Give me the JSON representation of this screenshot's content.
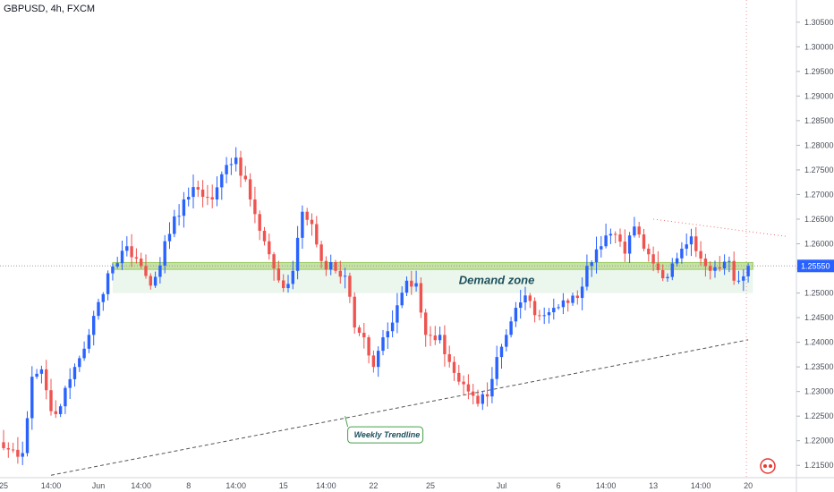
{
  "header": {
    "symbol_line": "GBPUSD, 4h, FXCM"
  },
  "chart_data": {
    "type": "candlestick",
    "symbol": "GBPUSD",
    "timeframe": "4h",
    "source": "FXCM",
    "ylim": [
      1.2125,
      1.3095
    ],
    "y_ticks": [
      "1.30500",
      "1.30000",
      "1.29500",
      "1.29000",
      "1.28500",
      "1.28000",
      "1.27500",
      "1.27000",
      "1.26500",
      "1.26000",
      "1.25500",
      "1.25000",
      "1.24500",
      "1.24000",
      "1.23500",
      "1.23000",
      "1.22500",
      "1.22000",
      "1.21500"
    ],
    "x_ticks": [
      {
        "label": "25",
        "i": 0
      },
      {
        "label": "14:00",
        "i": 10
      },
      {
        "label": "Jun",
        "i": 20
      },
      {
        "label": "14:00",
        "i": 29
      },
      {
        "label": "8",
        "i": 39
      },
      {
        "label": "14:00",
        "i": 49
      },
      {
        "label": "15",
        "i": 59
      },
      {
        "label": "14:00",
        "i": 68
      },
      {
        "label": "22",
        "i": 78
      },
      {
        "label": "25",
        "i": 90
      },
      {
        "label": "Jul",
        "i": 105
      },
      {
        "label": "6",
        "i": 117
      },
      {
        "label": "14:00",
        "i": 127
      },
      {
        "label": "13",
        "i": 137
      },
      {
        "label": "14:00",
        "i": 147
      },
      {
        "label": "20",
        "i": 157
      }
    ],
    "anchors": [
      [
        0,
        1.2185
      ],
      [
        4,
        1.2175
      ],
      [
        6,
        1.233
      ],
      [
        8,
        1.2345
      ],
      [
        10,
        1.226
      ],
      [
        12,
        1.227
      ],
      [
        14,
        1.2325
      ],
      [
        18,
        1.2415
      ],
      [
        22,
        1.254
      ],
      [
        26,
        1.2595
      ],
      [
        29,
        1.2555
      ],
      [
        31,
        1.2515
      ],
      [
        35,
        1.262
      ],
      [
        38,
        1.269
      ],
      [
        41,
        1.271
      ],
      [
        44,
        1.269
      ],
      [
        47,
        1.276
      ],
      [
        49,
        1.2775
      ],
      [
        52,
        1.269
      ],
      [
        55,
        1.2605
      ],
      [
        57,
        1.255
      ],
      [
        59,
        1.251
      ],
      [
        61,
        1.2545
      ],
      [
        63,
        1.2665
      ],
      [
        65,
        1.264
      ],
      [
        67,
        1.2565
      ],
      [
        70,
        1.2545
      ],
      [
        72,
        1.2535
      ],
      [
        74,
        1.243
      ],
      [
        76,
        1.241
      ],
      [
        78,
        1.235
      ],
      [
        80,
        1.241
      ],
      [
        82,
        1.244
      ],
      [
        85,
        1.2525
      ],
      [
        87,
        1.252
      ],
      [
        89,
        1.2415
      ],
      [
        92,
        1.2415
      ],
      [
        94,
        1.236
      ],
      [
        96,
        1.232
      ],
      [
        98,
        1.23
      ],
      [
        100,
        1.2275
      ],
      [
        102,
        1.229
      ],
      [
        104,
        1.237
      ],
      [
        106,
        1.2415
      ],
      [
        108,
        1.247
      ],
      [
        110,
        1.2495
      ],
      [
        112,
        1.2455
      ],
      [
        114,
        1.2455
      ],
      [
        116,
        1.247
      ],
      [
        118,
        1.2485
      ],
      [
        121,
        1.249
      ],
      [
        123,
        1.2555
      ],
      [
        126,
        1.2595
      ],
      [
        128,
        1.262
      ],
      [
        131,
        1.258
      ],
      [
        133,
        1.2635
      ],
      [
        135,
        1.259
      ],
      [
        137,
        1.256
      ],
      [
        139,
        1.253
      ],
      [
        141,
        1.256
      ],
      [
        143,
        1.259
      ],
      [
        145,
        1.2615
      ],
      [
        147,
        1.257
      ],
      [
        149,
        1.2545
      ],
      [
        151,
        1.255
      ],
      [
        153,
        1.2565
      ],
      [
        154,
        1.2525
      ],
      [
        155,
        1.2525
      ],
      [
        157,
        1.2555
      ]
    ],
    "current_price": 1.2555,
    "demand_zone": {
      "label": "Demand zone",
      "y_low": 1.25,
      "y_high": 1.2562
    },
    "support_line": {
      "y": 1.2555
    },
    "weekly_trendline": {
      "label": "Weekly Trendline",
      "from": [
        10,
        1.213
      ],
      "to": [
        157,
        1.2405
      ]
    },
    "resistance_projection": {
      "from": [
        137,
        1.265
      ],
      "to": [
        165,
        1.2615
      ]
    },
    "grid": false,
    "colors": {
      "up": "#2962ff",
      "down": "#ef5350",
      "zone": "#e8f5e9",
      "zone_edge": "#9ccc65",
      "trendline": "#555555",
      "axis_text": "#4a4f5a"
    }
  }
}
